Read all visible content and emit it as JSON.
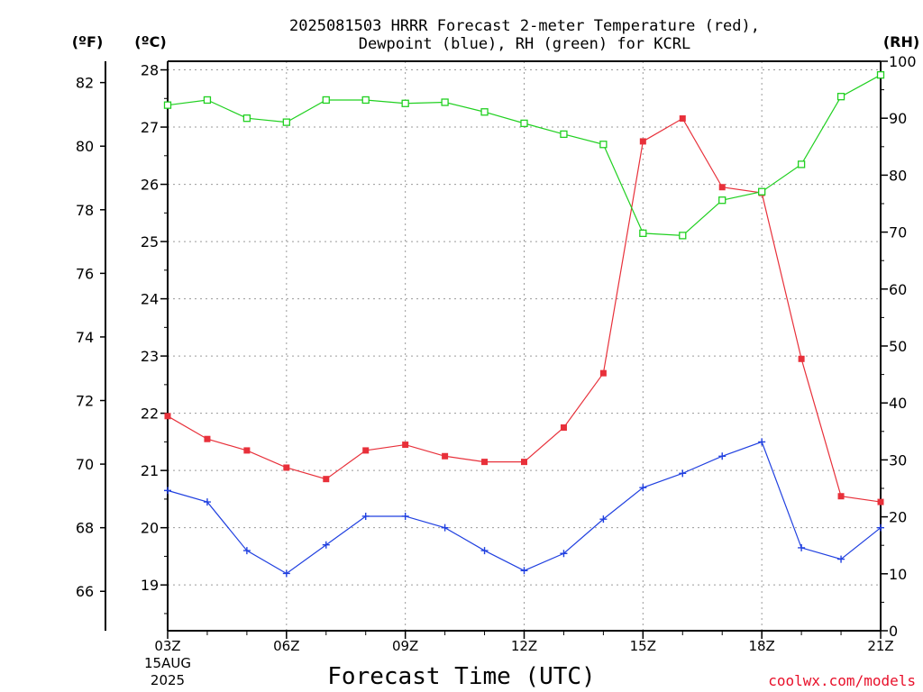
{
  "chart_data": {
    "type": "line",
    "title_line1": "2025081503 HRRR Forecast 2-meter Temperature (red),",
    "title_line2": "Dewpoint (blue), RH (green) for KCRL",
    "left_unit_f": "(ºF)",
    "left_unit_c": "(ºC)",
    "right_unit": "(RH)",
    "xlabel": "Forecast Time (UTC)",
    "credit": "coolwx.com/models",
    "x_hours": [
      3,
      4,
      5,
      6,
      7,
      8,
      9,
      10,
      11,
      12,
      13,
      14,
      15,
      16,
      17,
      18,
      19,
      20,
      21
    ],
    "x_ticks": [
      {
        "hour": 3,
        "label": "03Z",
        "sub1": "15AUG",
        "sub2": "2025"
      },
      {
        "hour": 6,
        "label": "06Z",
        "sub1": "",
        "sub2": ""
      },
      {
        "hour": 9,
        "label": "09Z",
        "sub1": "",
        "sub2": ""
      },
      {
        "hour": 12,
        "label": "12Z",
        "sub1": "",
        "sub2": ""
      },
      {
        "hour": 15,
        "label": "15Z",
        "sub1": "",
        "sub2": ""
      },
      {
        "hour": 18,
        "label": "18Z",
        "sub1": "",
        "sub2": ""
      },
      {
        "hour": 21,
        "label": "21Z",
        "sub1": "",
        "sub2": ""
      }
    ],
    "c_ticks": [
      "19",
      "20",
      "21",
      "22",
      "23",
      "24",
      "25",
      "26",
      "27",
      "28"
    ],
    "f_ticks": [
      "66",
      "68",
      "70",
      "72",
      "74",
      "76",
      "78",
      "80",
      "82"
    ],
    "rh_ticks": [
      "0",
      "10",
      "20",
      "30",
      "40",
      "50",
      "60",
      "70",
      "80",
      "90",
      "100"
    ],
    "c_range": [
      18.2,
      28.15
    ],
    "rh_range": [
      0,
      100
    ],
    "series": [
      {
        "color": "#e8303a",
        "marker": "filled-square",
        "axis": "C",
        "values": [
          21.95,
          21.55,
          21.35,
          21.05,
          20.85,
          21.35,
          21.45,
          21.25,
          21.15,
          21.15,
          21.75,
          22.7,
          26.75,
          27.15,
          25.95,
          25.85,
          22.95,
          20.55,
          20.45
        ]
      },
      {
        "color": "#2040e0",
        "marker": "plus",
        "axis": "C",
        "values": [
          20.65,
          20.45,
          19.6,
          19.2,
          19.7,
          20.2,
          20.2,
          20.0,
          19.6,
          19.25,
          19.55,
          20.15,
          20.7,
          20.95,
          21.25,
          21.5,
          19.65,
          19.45,
          20.0
        ]
      },
      {
        "color": "#20d020",
        "marker": "open-square",
        "axis": "RH",
        "values": [
          92.3,
          93.2,
          90.0,
          89.3,
          93.2,
          93.2,
          92.6,
          92.8,
          91.1,
          89.1,
          87.2,
          85.4,
          69.8,
          69.4,
          75.6,
          77.1,
          81.9,
          93.8,
          97.6
        ]
      }
    ]
  }
}
